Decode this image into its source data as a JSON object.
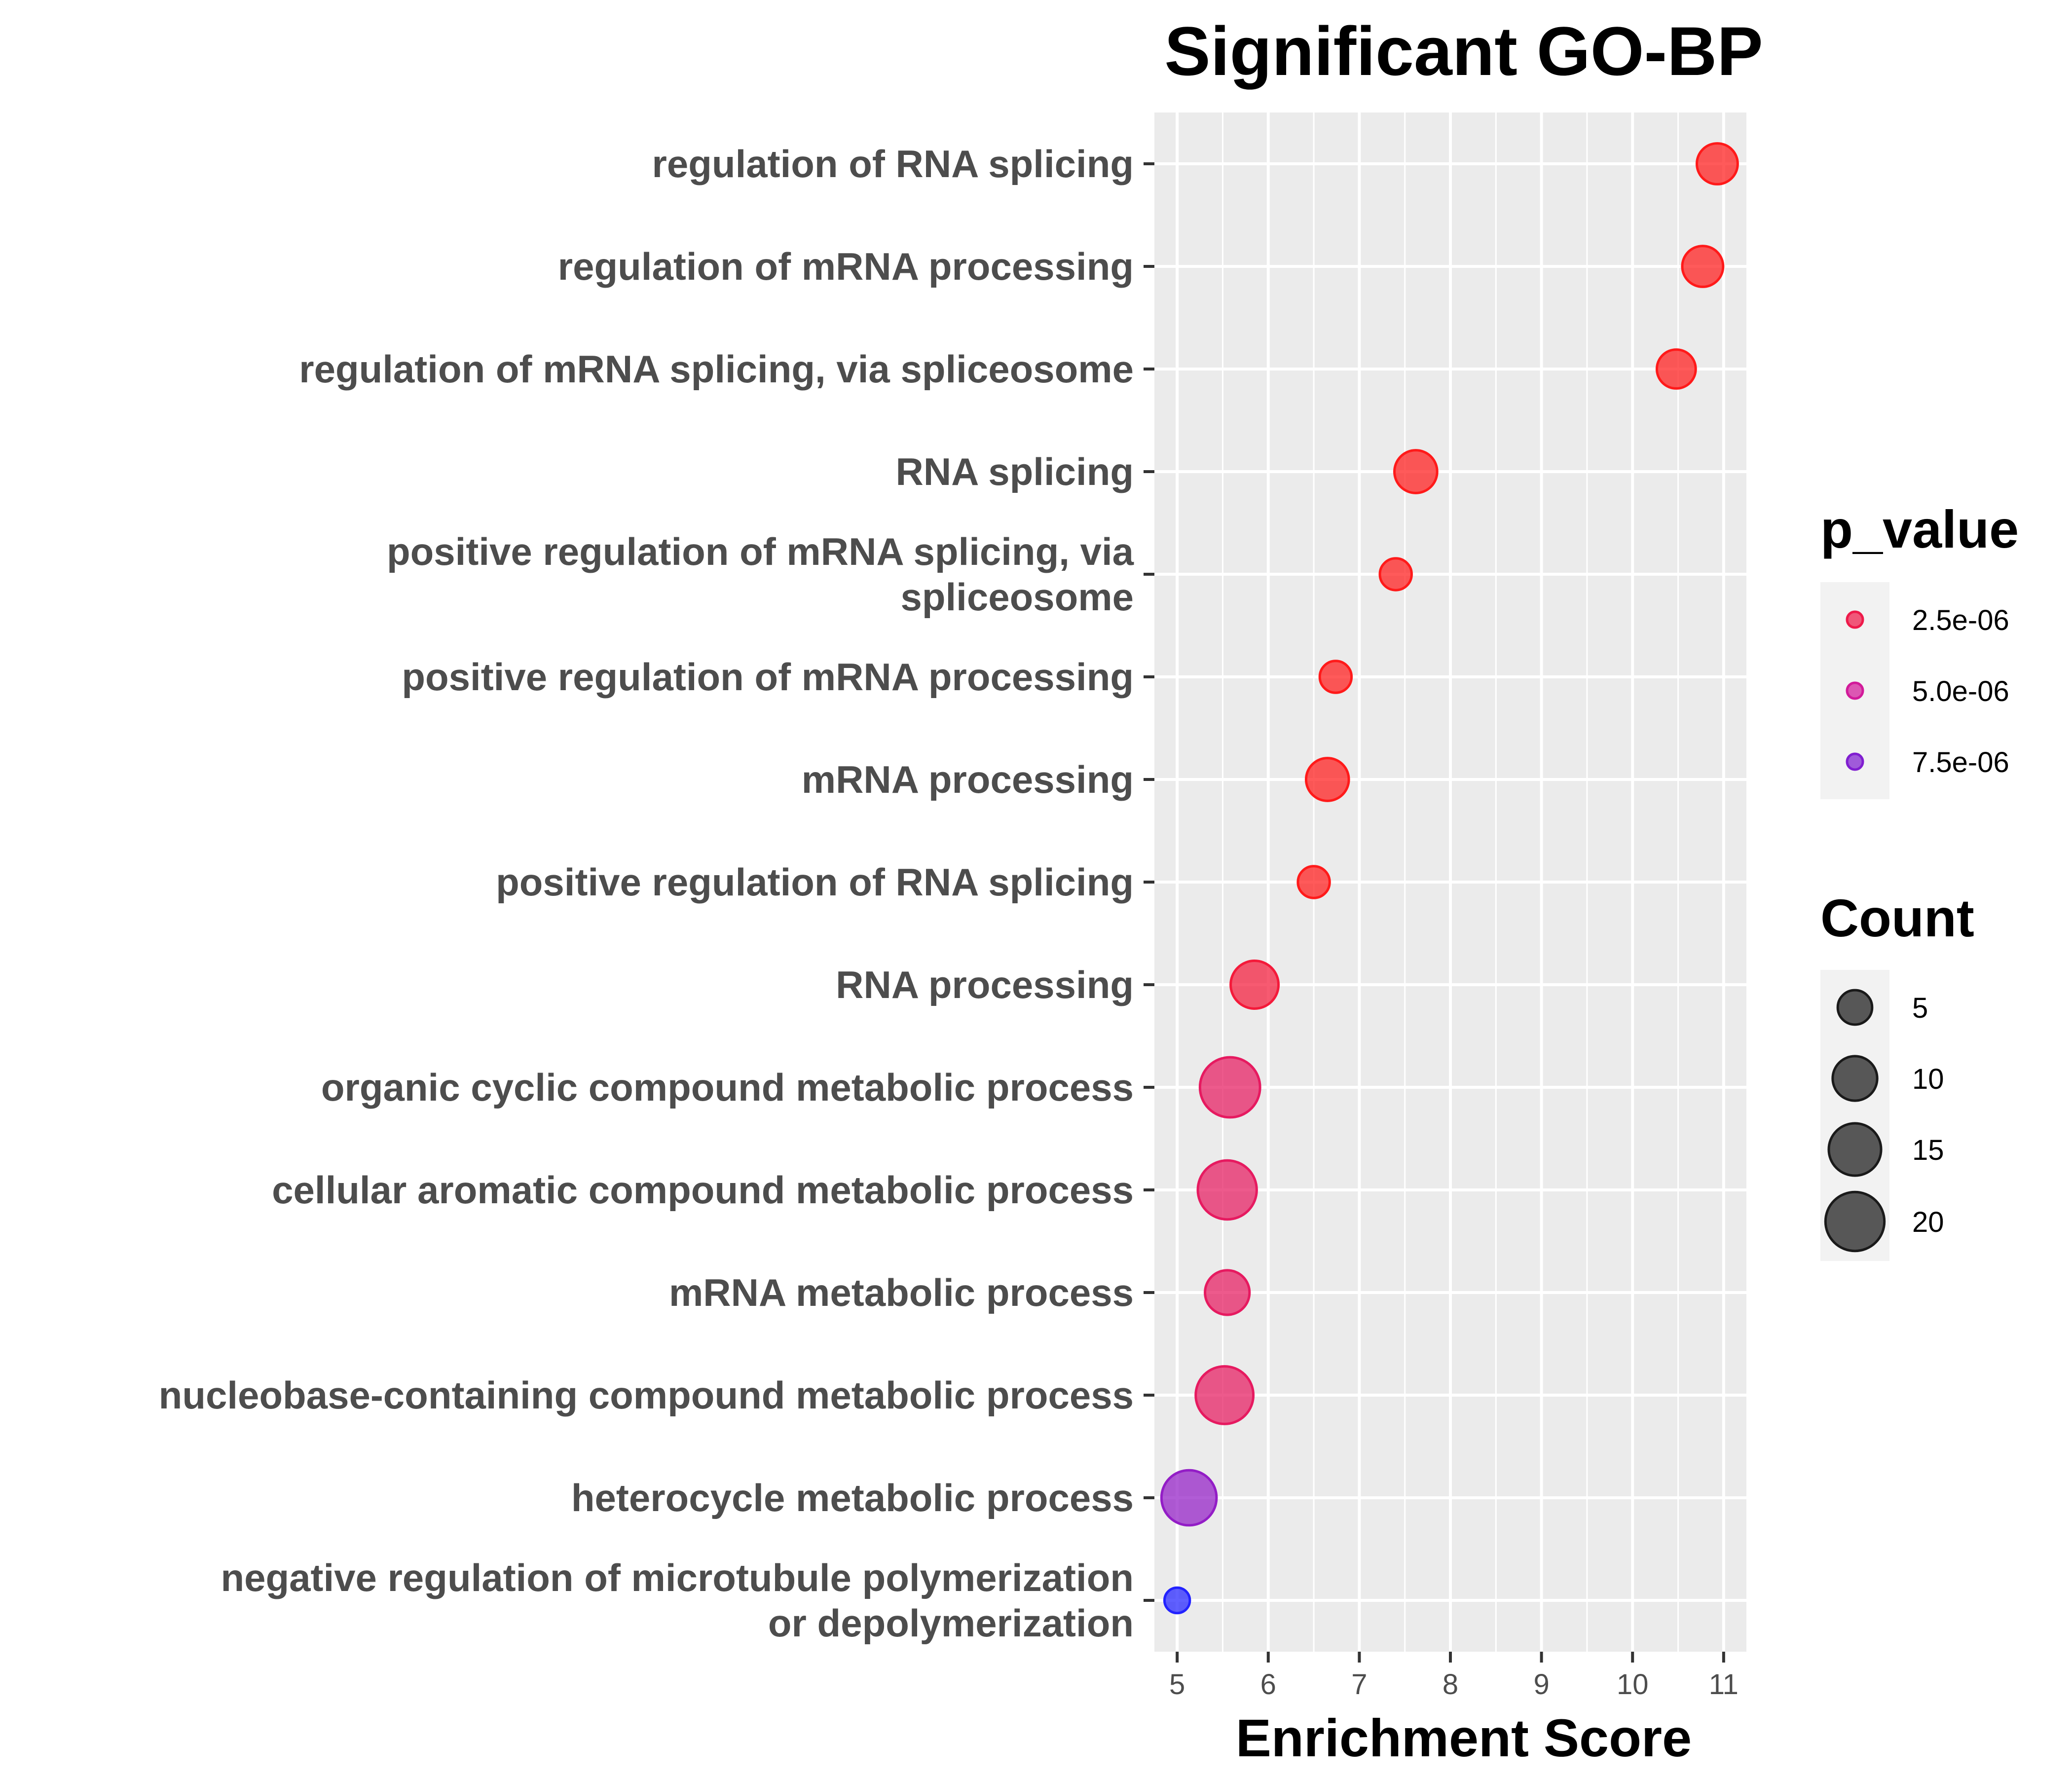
{
  "chart_data": {
    "type": "scatter",
    "title": "Significant GO-BP",
    "xlabel": "Enrichment Score",
    "ylabel": "",
    "xlim": [
      4.75,
      11.25
    ],
    "x_ticks": [
      "5",
      "6",
      "7",
      "8",
      "9",
      "10",
      "11"
    ],
    "grid": true,
    "legend_position": "right",
    "categories": [
      "regulation of RNA splicing",
      "regulation of mRNA processing",
      "regulation of mRNA splicing, via spliceosome",
      "RNA splicing",
      "positive regulation of mRNA splicing, via spliceosome",
      "positive regulation of mRNA processing",
      "mRNA processing",
      "positive regulation of RNA splicing",
      "RNA processing",
      "organic cyclic compound metabolic process",
      "cellular aromatic compound metabolic process",
      "mRNA metabolic process",
      "nucleobase-containing compound metabolic process",
      "heterocycle metabolic process",
      "negative regulation of microtubule polymerization or depolymerization"
    ],
    "category_lines": [
      [
        "regulation of RNA splicing"
      ],
      [
        "regulation of mRNA processing"
      ],
      [
        "regulation of mRNA splicing, via spliceosome"
      ],
      [
        "RNA splicing"
      ],
      [
        "positive regulation of mRNA splicing, via",
        "spliceosome"
      ],
      [
        "positive regulation of mRNA processing"
      ],
      [
        "mRNA processing"
      ],
      [
        "positive regulation of RNA splicing"
      ],
      [
        "RNA processing"
      ],
      [
        "organic cyclic compound metabolic process"
      ],
      [
        "cellular aromatic compound metabolic process"
      ],
      [
        "mRNA metabolic process"
      ],
      [
        "nucleobase-containing compound metabolic process"
      ],
      [
        "heterocycle metabolic process"
      ],
      [
        "negative regulation of microtubule polymerization",
        "or depolymerization"
      ]
    ],
    "points": [
      {
        "term": "regulation of RNA splicing",
        "x": 10.93,
        "count": 8,
        "p_value": 1e-06
      },
      {
        "term": "regulation of mRNA processing",
        "x": 10.77,
        "count": 8,
        "p_value": 1e-06
      },
      {
        "term": "regulation of mRNA splicing, via spliceosome",
        "x": 10.48,
        "count": 7,
        "p_value": 1e-06
      },
      {
        "term": "RNA splicing",
        "x": 7.62,
        "count": 9,
        "p_value": 1e-06
      },
      {
        "term": "positive regulation of mRNA splicing, via spliceosome",
        "x": 7.4,
        "count": 4,
        "p_value": 1e-06
      },
      {
        "term": "positive regulation of mRNA processing",
        "x": 6.74,
        "count": 4,
        "p_value": 1e-06
      },
      {
        "term": "mRNA processing",
        "x": 6.65,
        "count": 9,
        "p_value": 1e-06
      },
      {
        "term": "positive regulation of RNA splicing",
        "x": 6.5,
        "count": 4,
        "p_value": 1e-06
      },
      {
        "term": "RNA processing",
        "x": 5.85,
        "count": 12,
        "p_value": 2e-06
      },
      {
        "term": "organic cyclic compound metabolic process",
        "x": 5.58,
        "count": 21,
        "p_value": 3.2e-06
      },
      {
        "term": "cellular aromatic compound metabolic process",
        "x": 5.55,
        "count": 20,
        "p_value": 3.2e-06
      },
      {
        "term": "mRNA metabolic process",
        "x": 5.55,
        "count": 10,
        "p_value": 3.2e-06
      },
      {
        "term": "nucleobase-containing compound metabolic process",
        "x": 5.52,
        "count": 19,
        "p_value": 3.2e-06
      },
      {
        "term": "heterocycle metabolic process",
        "x": 5.13,
        "count": 17,
        "p_value": 7e-06
      },
      {
        "term": "negative regulation of microtubule polymerization or depolymerization",
        "x": 5.0,
        "count": 2,
        "p_value": 1e-05
      }
    ],
    "legend_p_value": {
      "title": "p_value",
      "entries": [
        {
          "label": "2.5e-06",
          "value": 2.5e-06
        },
        {
          "label": "5.0e-06",
          "value": 5e-06
        },
        {
          "label": "7.5e-06",
          "value": 7.5e-06
        }
      ],
      "color_low": "#ff1a1a",
      "color_mid": "#cc1aaa",
      "color_high": "#2222ff",
      "p_range": [
        1e-06,
        1e-05
      ]
    },
    "legend_count": {
      "title": "Count",
      "entries": [
        {
          "label": "5",
          "value": 5
        },
        {
          "label": "10",
          "value": 10
        },
        {
          "label": "15",
          "value": 15
        },
        {
          "label": "20",
          "value": 20
        }
      ],
      "color": "#1a1a1a"
    },
    "panel_color": "#ebebeb",
    "grid_color": "#ffffff"
  }
}
